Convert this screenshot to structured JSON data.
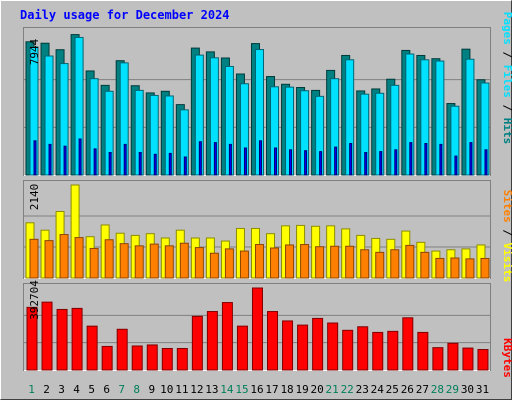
{
  "chart_data": [
    {
      "type": "bar",
      "title": "Daily usage for December 2024",
      "categories": [
        "1",
        "2",
        "3",
        "4",
        "5",
        "6",
        "7",
        "8",
        "9",
        "10",
        "11",
        "12",
        "13",
        "14",
        "15",
        "16",
        "17",
        "18",
        "19",
        "20",
        "21",
        "22",
        "23",
        "24",
        "25",
        "26",
        "27",
        "28",
        "29",
        "30",
        "31"
      ],
      "weekend_days": [
        "1",
        "7",
        "8",
        "14",
        "15",
        "21",
        "22",
        "28",
        "29"
      ],
      "y_axis_max_label": "7944",
      "ylabel_parts": [
        "Pages",
        "Files",
        "Hits"
      ],
      "ylim": [
        0,
        7944
      ],
      "series": [
        {
          "name": "Hits",
          "values": [
            7400,
            7320,
            6960,
            7800,
            5780,
            4980,
            6350,
            4960,
            4560,
            4650,
            3910,
            7050,
            6840,
            6500,
            5610,
            7300,
            5470,
            5040,
            4860,
            4700,
            5810,
            6640,
            4670,
            4780,
            5320,
            6920,
            6640,
            6460,
            3970,
            6990,
            5290
          ]
        },
        {
          "name": "Files",
          "values": [
            7110,
            6610,
            6190,
            7640,
            5350,
            4650,
            6230,
            4700,
            4420,
            4390,
            3620,
            6660,
            6510,
            6030,
            5070,
            6970,
            4900,
            4880,
            4680,
            4370,
            5350,
            6400,
            4490,
            4540,
            4980,
            6720,
            6400,
            6330,
            3820,
            6430,
            5110
          ]
        },
        {
          "name": "Pages",
          "values": [
            1900,
            1700,
            1600,
            2000,
            1450,
            1250,
            1700,
            1250,
            1150,
            1200,
            1000,
            1850,
            1800,
            1700,
            1500,
            1900,
            1500,
            1400,
            1350,
            1300,
            1550,
            1750,
            1250,
            1300,
            1400,
            1800,
            1750,
            1700,
            1050,
            1800,
            1400
          ]
        }
      ],
      "colors": {
        "Hits": "#008080",
        "Files": "#00e0ff",
        "Pages": "#0000ff"
      }
    },
    {
      "type": "bar",
      "categories": [
        "1",
        "2",
        "3",
        "4",
        "5",
        "6",
        "7",
        "8",
        "9",
        "10",
        "11",
        "12",
        "13",
        "14",
        "15",
        "16",
        "17",
        "18",
        "19",
        "20",
        "21",
        "22",
        "23",
        "24",
        "25",
        "26",
        "27",
        "28",
        "29",
        "30",
        "31"
      ],
      "y_axis_max_label": "2140",
      "ylabel_parts": [
        "Sites",
        "Visits"
      ],
      "ylim": [
        0,
        2140
      ],
      "series": [
        {
          "name": "Visits",
          "values": [
            1270,
            1100,
            1530,
            2140,
            950,
            1220,
            1030,
            980,
            1020,
            920,
            1100,
            920,
            920,
            850,
            1140,
            1140,
            1020,
            1200,
            1210,
            1190,
            1200,
            1130,
            980,
            910,
            890,
            1080,
            820,
            620,
            650,
            670,
            760
          ]
        },
        {
          "name": "Sites",
          "values": [
            890,
            860,
            1000,
            930,
            680,
            880,
            790,
            740,
            780,
            740,
            800,
            700,
            570,
            670,
            620,
            770,
            690,
            760,
            770,
            720,
            730,
            730,
            650,
            590,
            650,
            750,
            590,
            450,
            460,
            440,
            450
          ]
        }
      ],
      "colors": {
        "Visits": "#ffff00",
        "Sites": "#ff8000"
      }
    },
    {
      "type": "bar",
      "categories": [
        "1",
        "2",
        "3",
        "4",
        "5",
        "6",
        "7",
        "8",
        "9",
        "10",
        "11",
        "12",
        "13",
        "14",
        "15",
        "16",
        "17",
        "18",
        "19",
        "20",
        "21",
        "22",
        "23",
        "24",
        "25",
        "26",
        "27",
        "28",
        "29",
        "30",
        "31"
      ],
      "y_axis_max_label": "392704",
      "ylabel_parts": [
        "KBytes"
      ],
      "ylim": [
        0,
        392704
      ],
      "series": [
        {
          "name": "KBytes",
          "values": [
            300000,
            325000,
            290000,
            295000,
            210000,
            113000,
            195000,
            115000,
            120000,
            103000,
            103000,
            257000,
            280000,
            323000,
            210000,
            392704,
            280000,
            235000,
            215000,
            247000,
            225000,
            190000,
            207000,
            180000,
            185000,
            250000,
            180000,
            107000,
            128000,
            105000,
            98000
          ]
        }
      ],
      "colors": {
        "KBytes": "#ff0000"
      }
    }
  ]
}
